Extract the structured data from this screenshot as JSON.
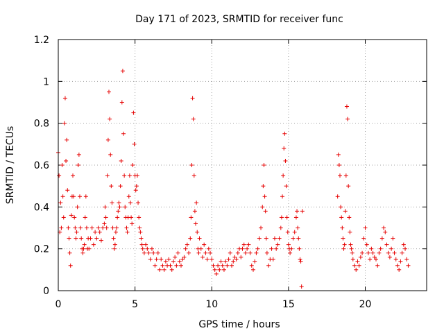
{
  "chart_data": {
    "type": "scatter",
    "title": "Day 171 of 2023, SRMTID for receiver func",
    "xlabel": "GPS time / hours",
    "ylabel": "SRMTID / TECUs",
    "xlim": [
      0,
      24
    ],
    "ylim": [
      0,
      1.2
    ],
    "xticks": [
      0,
      5,
      10,
      15,
      20
    ],
    "yticks": [
      0,
      0.2,
      0.4,
      0.6,
      0.8,
      1,
      1.2
    ],
    "xtick_labels": [
      "0",
      "5",
      "10",
      "15",
      "20"
    ],
    "ytick_labels": [
      "0",
      "0.2",
      "0.4",
      "0.6",
      "0.8",
      "1",
      "1.2"
    ],
    "grid": true,
    "marker": "+",
    "color": "#e60000",
    "series": [
      {
        "name": "SRMTID",
        "x": [
          0.0,
          0.05,
          0.1,
          0.15,
          0.2,
          0.25,
          0.3,
          0.35,
          0.4,
          0.45,
          0.5,
          0.55,
          0.6,
          0.65,
          0.7,
          0.75,
          0.8,
          0.85,
          0.9,
          0.95,
          1.0,
          1.05,
          1.1,
          1.15,
          1.2,
          1.25,
          1.3,
          1.35,
          1.4,
          1.45,
          1.5,
          1.55,
          1.6,
          1.65,
          1.7,
          1.75,
          1.8,
          1.85,
          1.9,
          1.95,
          2.0,
          2.1,
          2.2,
          2.3,
          2.4,
          2.5,
          2.6,
          2.7,
          2.8,
          2.9,
          3.0,
          3.05,
          3.1,
          3.15,
          3.2,
          3.25,
          3.3,
          3.35,
          3.4,
          3.45,
          3.5,
          3.55,
          3.6,
          3.65,
          3.7,
          3.75,
          3.8,
          3.85,
          3.9,
          3.95,
          4.0,
          4.05,
          4.1,
          4.15,
          4.2,
          4.25,
          4.3,
          4.35,
          4.4,
          4.45,
          4.5,
          4.55,
          4.6,
          4.65,
          4.7,
          4.75,
          4.8,
          4.85,
          4.9,
          4.95,
          5.0,
          5.05,
          5.1,
          5.15,
          5.2,
          5.25,
          5.3,
          5.35,
          5.4,
          5.45,
          5.5,
          5.6,
          5.7,
          5.8,
          5.9,
          6.0,
          6.1,
          6.2,
          6.3,
          6.4,
          6.5,
          6.6,
          6.7,
          6.8,
          6.9,
          7.0,
          7.1,
          7.2,
          7.3,
          7.4,
          7.5,
          7.6,
          7.7,
          7.8,
          7.9,
          8.0,
          8.1,
          8.2,
          8.3,
          8.4,
          8.5,
          8.6,
          8.65,
          8.7,
          8.75,
          8.8,
          8.85,
          8.9,
          8.95,
          9.0,
          9.05,
          9.1,
          9.15,
          9.2,
          9.3,
          9.4,
          9.5,
          9.6,
          9.7,
          9.8,
          9.9,
          10.0,
          10.1,
          10.2,
          10.3,
          10.4,
          10.5,
          10.6,
          10.7,
          10.8,
          10.9,
          11.0,
          11.1,
          11.2,
          11.3,
          11.4,
          11.5,
          11.6,
          11.7,
          11.8,
          11.9,
          12.0,
          12.1,
          12.2,
          12.3,
          12.4,
          12.5,
          12.6,
          12.7,
          12.8,
          12.9,
          13.0,
          13.1,
          13.2,
          13.3,
          13.35,
          13.4,
          13.45,
          13.5,
          13.55,
          13.6,
          13.7,
          13.8,
          13.9,
          14.0,
          14.1,
          14.2,
          14.3,
          14.4,
          14.5,
          14.55,
          14.6,
          14.65,
          14.7,
          14.75,
          14.8,
          14.85,
          14.9,
          14.95,
          15.0,
          15.05,
          15.1,
          15.2,
          15.3,
          15.4,
          15.5,
          15.55,
          15.6,
          15.65,
          15.7,
          15.75,
          15.8,
          15.85,
          15.9,
          18.2,
          18.25,
          18.3,
          18.35,
          18.4,
          18.45,
          18.5,
          18.55,
          18.6,
          18.65,
          18.7,
          18.75,
          18.8,
          18.85,
          18.9,
          18.95,
          19.0,
          19.05,
          19.1,
          19.15,
          19.2,
          19.3,
          19.4,
          19.5,
          19.6,
          19.7,
          19.8,
          19.9,
          20.0,
          20.1,
          20.2,
          20.3,
          20.4,
          20.5,
          20.6,
          20.7,
          20.8,
          20.9,
          21.0,
          21.1,
          21.2,
          21.3,
          21.4,
          21.5,
          21.6,
          21.7,
          21.8,
          21.9,
          22.0,
          22.1,
          22.2,
          22.3,
          22.4,
          22.5,
          22.6,
          22.7,
          22.8
        ],
        "y": [
          0.66,
          0.55,
          0.28,
          0.42,
          0.3,
          0.6,
          0.45,
          0.35,
          0.8,
          0.92,
          0.62,
          0.72,
          0.48,
          0.3,
          0.25,
          0.18,
          0.12,
          0.36,
          0.45,
          0.55,
          0.45,
          0.35,
          0.3,
          0.25,
          0.28,
          0.4,
          0.6,
          0.65,
          0.45,
          0.3,
          0.25,
          0.2,
          0.18,
          0.2,
          0.22,
          0.35,
          0.45,
          0.3,
          0.2,
          0.25,
          0.2,
          0.25,
          0.3,
          0.22,
          0.28,
          0.25,
          0.3,
          0.28,
          0.24,
          0.3,
          0.32,
          0.4,
          0.35,
          0.3,
          0.55,
          0.72,
          0.95,
          0.82,
          0.65,
          0.5,
          0.42,
          0.3,
          0.25,
          0.2,
          0.22,
          0.28,
          0.3,
          0.35,
          0.38,
          0.42,
          0.4,
          0.5,
          0.62,
          0.9,
          1.05,
          0.75,
          0.55,
          0.4,
          0.35,
          0.3,
          0.28,
          0.35,
          0.45,
          0.55,
          0.42,
          0.35,
          0.32,
          0.6,
          0.85,
          0.7,
          0.55,
          0.48,
          0.5,
          0.55,
          0.42,
          0.35,
          0.3,
          0.28,
          0.25,
          0.22,
          0.2,
          0.18,
          0.22,
          0.2,
          0.18,
          0.15,
          0.2,
          0.18,
          0.12,
          0.15,
          0.18,
          0.1,
          0.15,
          0.12,
          0.1,
          0.14,
          0.12,
          0.15,
          0.12,
          0.1,
          0.14,
          0.16,
          0.12,
          0.18,
          0.14,
          0.12,
          0.15,
          0.16,
          0.2,
          0.22,
          0.18,
          0.25,
          0.35,
          0.6,
          0.92,
          0.82,
          0.55,
          0.38,
          0.32,
          0.42,
          0.28,
          0.2,
          0.18,
          0.25,
          0.2,
          0.16,
          0.22,
          0.18,
          0.15,
          0.2,
          0.18,
          0.15,
          0.12,
          0.1,
          0.08,
          0.12,
          0.1,
          0.14,
          0.12,
          0.1,
          0.14,
          0.12,
          0.15,
          0.18,
          0.12,
          0.14,
          0.16,
          0.15,
          0.18,
          0.2,
          0.16,
          0.2,
          0.22,
          0.18,
          0.2,
          0.22,
          0.18,
          0.12,
          0.1,
          0.14,
          0.18,
          0.2,
          0.25,
          0.3,
          0.4,
          0.5,
          0.6,
          0.45,
          0.38,
          0.25,
          0.18,
          0.12,
          0.15,
          0.2,
          0.15,
          0.25,
          0.2,
          0.22,
          0.25,
          0.3,
          0.35,
          0.45,
          0.55,
          0.68,
          0.75,
          0.62,
          0.5,
          0.35,
          0.28,
          0.22,
          0.2,
          0.18,
          0.2,
          0.25,
          0.28,
          0.35,
          0.38,
          0.3,
          0.25,
          0.2,
          0.15,
          0.14,
          0.02,
          0.38,
          0.45,
          0.65,
          0.6,
          0.55,
          0.4,
          0.35,
          0.3,
          0.25,
          0.2,
          0.22,
          0.38,
          0.55,
          0.88,
          0.82,
          0.5,
          0.35,
          0.28,
          0.22,
          0.2,
          0.18,
          0.15,
          0.12,
          0.1,
          0.14,
          0.12,
          0.16,
          0.18,
          0.25,
          0.3,
          0.22,
          0.18,
          0.15,
          0.2,
          0.18,
          0.16,
          0.15,
          0.12,
          0.18,
          0.2,
          0.25,
          0.3,
          0.28,
          0.22,
          0.18,
          0.16,
          0.2,
          0.25,
          0.18,
          0.15,
          0.12,
          0.1,
          0.14,
          0.18,
          0.22,
          0.2,
          0.15,
          0.12
        ]
      }
    ]
  }
}
